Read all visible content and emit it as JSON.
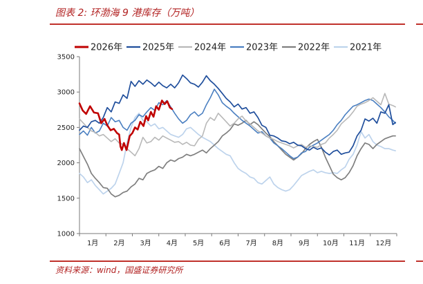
{
  "caption": "图表 2:  环渤海 9 港库存（万吨）",
  "source": "资料来源：wind，国盛证券研究所",
  "colors": {
    "accent": "#c0302a"
  },
  "chart_data": {
    "type": "line",
    "title": "",
    "xlabel": "",
    "ylabel": "",
    "ylim": [
      1000,
      3500
    ],
    "yticks": [
      1000,
      1500,
      2000,
      2500,
      3000,
      3500
    ],
    "xlim": [
      1,
      13
    ],
    "xticks": [
      1,
      2,
      3,
      4,
      5,
      6,
      7,
      8,
      9,
      10,
      11,
      12
    ],
    "xtick_labels": [
      "1月",
      "2月",
      "3月",
      "4月",
      "5月",
      "6月",
      "7月",
      "8月",
      "9月",
      "10月",
      "11月",
      "12月"
    ],
    "legend_position": "top",
    "grid": false,
    "series": [
      {
        "name": "2026年",
        "color": "#c00000",
        "width": 2.6,
        "x": [
          1.0,
          1.12,
          1.25,
          1.4,
          1.55,
          1.7,
          1.82,
          1.95,
          2.05,
          2.18,
          2.3,
          2.42,
          2.5,
          2.55,
          2.6,
          2.68,
          2.78,
          2.9,
          3.0,
          3.1,
          3.2,
          3.3,
          3.42,
          3.52,
          3.6,
          3.7,
          3.8,
          3.9,
          4.0,
          4.12,
          4.22,
          4.32,
          4.42,
          4.5
        ],
        "y": [
          2840,
          2740,
          2690,
          2800,
          2710,
          2700,
          2560,
          2620,
          2530,
          2460,
          2480,
          2420,
          2400,
          2230,
          2180,
          2280,
          2180,
          2380,
          2420,
          2500,
          2470,
          2580,
          2520,
          2660,
          2600,
          2720,
          2650,
          2800,
          2750,
          2880,
          2830,
          2870,
          2780,
          2760
        ]
      },
      {
        "name": "2025年",
        "color": "#1f4e9c",
        "width": 1.7,
        "x": [
          1.0,
          1.15,
          1.3,
          1.45,
          1.6,
          1.75,
          1.9,
          2.05,
          2.2,
          2.35,
          2.5,
          2.65,
          2.8,
          2.95,
          3.1,
          3.25,
          3.4,
          3.55,
          3.7,
          3.85,
          4.0,
          4.15,
          4.3,
          4.45,
          4.6,
          4.75,
          4.9,
          5.05,
          5.2,
          5.35,
          5.5,
          5.65,
          5.8,
          5.95,
          6.1,
          6.25,
          6.4,
          6.55,
          6.7,
          6.85,
          7.0,
          7.15,
          7.3,
          7.45,
          7.6,
          7.75,
          7.9,
          8.05,
          8.2,
          8.35,
          8.5,
          8.65,
          8.8,
          8.95,
          9.1,
          9.25,
          9.4,
          9.55,
          9.7,
          9.85,
          10.0,
          10.15,
          10.3,
          10.45,
          10.6,
          10.75,
          10.9,
          11.05,
          11.2,
          11.35,
          11.5,
          11.65,
          11.8,
          11.95,
          12.1,
          12.25,
          12.4,
          12.55,
          12.7,
          12.85,
          12.95
        ],
        "y": [
          2460,
          2520,
          2500,
          2580,
          2600,
          2560,
          2640,
          2780,
          2720,
          2860,
          2840,
          2960,
          2910,
          3150,
          3080,
          3160,
          3110,
          3170,
          3130,
          3080,
          3140,
          3090,
          3060,
          3110,
          3060,
          3130,
          3240,
          3190,
          3130,
          3110,
          3070,
          3140,
          3230,
          3160,
          3110,
          3050,
          2980,
          2910,
          2860,
          2790,
          2830,
          2760,
          2780,
          2700,
          2720,
          2640,
          2530,
          2500,
          2390,
          2380,
          2350,
          2310,
          2300,
          2270,
          2290,
          2250,
          2240,
          2200,
          2180,
          2220,
          2190,
          2210,
          2150,
          2110,
          2160,
          2180,
          2120,
          2140,
          2150,
          2240,
          2380,
          2460,
          2620,
          2590,
          2630,
          2560,
          2720,
          2700,
          2820,
          2540,
          2570
        ]
      },
      {
        "name": "2024年",
        "color": "#b8b8b8",
        "width": 1.6,
        "x": [
          1.0,
          1.15,
          1.3,
          1.45,
          1.6,
          1.75,
          1.9,
          2.05,
          2.2,
          2.35,
          2.5,
          2.65,
          2.8,
          2.95,
          3.1,
          3.25,
          3.4,
          3.55,
          3.7,
          3.85,
          4.0,
          4.15,
          4.3,
          4.45,
          4.6,
          4.75,
          4.9,
          5.05,
          5.2,
          5.35,
          5.5,
          5.65,
          5.8,
          5.95,
          6.1,
          6.25,
          6.4,
          6.55,
          6.7,
          6.85,
          7.0,
          7.15,
          7.3,
          7.45,
          7.6,
          7.75,
          7.9,
          8.05,
          8.2,
          8.35,
          8.5,
          8.65,
          8.8,
          8.95,
          9.1,
          9.25,
          9.4,
          9.55,
          9.7,
          9.85,
          10.0,
          10.15,
          10.3,
          10.45,
          10.6,
          10.75,
          10.9,
          11.05,
          11.2,
          11.35,
          11.5,
          11.65,
          11.8,
          11.95,
          12.1,
          12.25,
          12.4,
          12.55,
          12.7,
          12.85,
          12.95
        ],
        "y": [
          2620,
          2560,
          2500,
          2450,
          2430,
          2380,
          2400,
          2350,
          2300,
          2340,
          2280,
          2260,
          2200,
          2150,
          2100,
          2200,
          2360,
          2280,
          2300,
          2360,
          2320,
          2380,
          2350,
          2320,
          2290,
          2300,
          2260,
          2290,
          2250,
          2240,
          2330,
          2380,
          2560,
          2640,
          2600,
          2700,
          2640,
          2580,
          2520,
          2560,
          2620,
          2660,
          2590,
          2550,
          2500,
          2450,
          2420,
          2380,
          2350,
          2330,
          2300,
          2280,
          2260,
          2240,
          2210,
          2240,
          2260,
          2220,
          2240,
          2230,
          2220,
          2260,
          2280,
          2350,
          2400,
          2460,
          2550,
          2600,
          2650,
          2720,
          2800,
          2830,
          2850,
          2880,
          2920,
          2870,
          2820,
          2980,
          2830,
          2810,
          2790
        ]
      },
      {
        "name": "2023年",
        "color": "#4a7fc1",
        "width": 1.6,
        "x": [
          1.0,
          1.15,
          1.3,
          1.45,
          1.6,
          1.75,
          1.9,
          2.05,
          2.2,
          2.35,
          2.5,
          2.65,
          2.8,
          2.95,
          3.1,
          3.25,
          3.4,
          3.55,
          3.7,
          3.85,
          4.0,
          4.15,
          4.3,
          4.45,
          4.6,
          4.75,
          4.9,
          5.05,
          5.2,
          5.35,
          5.5,
          5.65,
          5.8,
          5.95,
          6.1,
          6.25,
          6.4,
          6.55,
          6.7,
          6.85,
          7.0,
          7.15,
          7.3,
          7.45,
          7.6,
          7.75,
          7.9,
          8.05,
          8.2,
          8.35,
          8.5,
          8.65,
          8.8,
          8.95,
          9.1,
          9.25,
          9.4,
          9.55,
          9.7,
          9.85,
          10.0,
          10.15,
          10.3,
          10.45,
          10.6,
          10.75,
          10.9,
          11.05,
          11.2,
          11.35,
          11.5,
          11.65,
          11.8,
          11.95,
          12.1,
          12.25,
          12.4,
          12.55,
          12.7,
          12.85,
          12.95
        ],
        "y": [
          2400,
          2450,
          2390,
          2500,
          2420,
          2450,
          2560,
          2520,
          2640,
          2580,
          2600,
          2500,
          2460,
          2560,
          2600,
          2680,
          2650,
          2720,
          2780,
          2740,
          2850,
          2820,
          2880,
          2790,
          2700,
          2620,
          2560,
          2600,
          2680,
          2720,
          2660,
          2700,
          2820,
          2920,
          3040,
          2960,
          2850,
          2800,
          2760,
          2700,
          2650,
          2600,
          2560,
          2520,
          2470,
          2420,
          2440,
          2380,
          2350,
          2280,
          2240,
          2200,
          2150,
          2100,
          2060,
          2080,
          2140,
          2160,
          2220,
          2250,
          2280,
          2320,
          2360,
          2400,
          2460,
          2540,
          2600,
          2680,
          2740,
          2800,
          2820,
          2850,
          2880,
          2900,
          2880,
          2830,
          2780,
          2720,
          2650,
          2600,
          2560
        ]
      },
      {
        "name": "2022年",
        "color": "#7f7f7f",
        "width": 1.7,
        "x": [
          1.0,
          1.15,
          1.3,
          1.45,
          1.6,
          1.75,
          1.9,
          2.05,
          2.2,
          2.35,
          2.5,
          2.65,
          2.8,
          2.95,
          3.1,
          3.25,
          3.4,
          3.55,
          3.7,
          3.85,
          4.0,
          4.15,
          4.3,
          4.45,
          4.6,
          4.75,
          4.9,
          5.05,
          5.2,
          5.35,
          5.5,
          5.65,
          5.8,
          5.95,
          6.1,
          6.25,
          6.4,
          6.55,
          6.7,
          6.85,
          7.0,
          7.15,
          7.3,
          7.45,
          7.6,
          7.75,
          7.9,
          8.05,
          8.2,
          8.35,
          8.5,
          8.65,
          8.8,
          8.95,
          9.1,
          9.25,
          9.4,
          9.55,
          9.7,
          9.85,
          10.0,
          10.15,
          10.3,
          10.45,
          10.6,
          10.75,
          10.9,
          11.05,
          11.2,
          11.35,
          11.5,
          11.65,
          11.8,
          11.95,
          12.1,
          12.25,
          12.4,
          12.55,
          12.7,
          12.85,
          12.95
        ],
        "y": [
          2200,
          2090,
          1980,
          1850,
          1780,
          1720,
          1650,
          1640,
          1560,
          1520,
          1540,
          1580,
          1600,
          1660,
          1700,
          1780,
          1760,
          1850,
          1880,
          1900,
          1950,
          1920,
          2000,
          2040,
          2020,
          2060,
          2080,
          2120,
          2100,
          2120,
          2150,
          2180,
          2140,
          2200,
          2250,
          2300,
          2380,
          2420,
          2470,
          2550,
          2530,
          2560,
          2600,
          2540,
          2580,
          2540,
          2480,
          2420,
          2370,
          2300,
          2240,
          2180,
          2120,
          2080,
          2040,
          2080,
          2130,
          2200,
          2260,
          2300,
          2330,
          2220,
          2080,
          1960,
          1840,
          1790,
          1760,
          1790,
          1860,
          1960,
          2100,
          2200,
          2280,
          2260,
          2200,
          2260,
          2300,
          2340,
          2360,
          2380,
          2380
        ]
      },
      {
        "name": "2021年",
        "color": "#bdd3ec",
        "width": 1.7,
        "x": [
          1.0,
          1.15,
          1.3,
          1.45,
          1.6,
          1.75,
          1.9,
          2.05,
          2.2,
          2.35,
          2.5,
          2.65,
          2.8,
          2.95,
          3.1,
          3.25,
          3.4,
          3.55,
          3.7,
          3.85,
          4.0,
          4.15,
          4.3,
          4.45,
          4.6,
          4.75,
          4.9,
          5.05,
          5.2,
          5.35,
          5.5,
          5.65,
          5.8,
          5.95,
          6.1,
          6.25,
          6.4,
          6.55,
          6.7,
          6.85,
          7.0,
          7.15,
          7.3,
          7.45,
          7.6,
          7.75,
          7.9,
          8.05,
          8.2,
          8.35,
          8.5,
          8.65,
          8.8,
          8.95,
          9.1,
          9.25,
          9.4,
          9.55,
          9.7,
          9.85,
          10.0,
          10.15,
          10.3,
          10.45,
          10.6,
          10.75,
          10.9,
          11.05,
          11.2,
          11.35,
          11.5,
          11.65,
          11.8,
          11.95,
          12.1,
          12.25,
          12.4,
          12.55,
          12.7,
          12.85,
          12.95
        ],
        "y": [
          1850,
          1800,
          1720,
          1760,
          1680,
          1620,
          1560,
          1600,
          1640,
          1700,
          1850,
          2000,
          2280,
          2500,
          2640,
          2700,
          2600,
          2580,
          2520,
          2550,
          2480,
          2500,
          2450,
          2400,
          2380,
          2360,
          2400,
          2480,
          2500,
          2450,
          2400,
          2360,
          2330,
          2300,
          2250,
          2200,
          2160,
          2120,
          2100,
          2000,
          1920,
          1880,
          1850,
          1800,
          1780,
          1720,
          1700,
          1750,
          1800,
          1700,
          1650,
          1620,
          1600,
          1620,
          1680,
          1750,
          1820,
          1850,
          1880,
          1900,
          1860,
          1880,
          1860,
          1850,
          1860,
          1850,
          1900,
          1940,
          2050,
          2120,
          2250,
          2440,
          2350,
          2400,
          2300,
          2250,
          2230,
          2200,
          2200,
          2180,
          2170
        ]
      }
    ]
  }
}
